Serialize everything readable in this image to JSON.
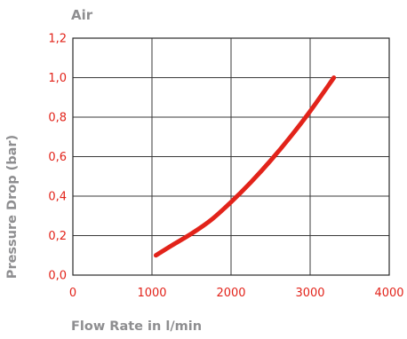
{
  "chart_data": {
    "type": "line",
    "title": "Air",
    "xlabel": "Flow Rate in l/min",
    "ylabel": "Pressure Drop (bar)",
    "xlim": [
      0,
      4000
    ],
    "ylim": [
      0,
      1.2
    ],
    "x_ticks": [
      "0",
      "1000",
      "2000",
      "3000",
      "4000"
    ],
    "y_ticks": [
      "0,0",
      "0,2",
      "0,4",
      "0,6",
      "0,8",
      "1,0",
      "1,2"
    ],
    "grid": true,
    "series": [
      {
        "color": "#e2231a",
        "x": [
          1050,
          1250,
          1500,
          1750,
          2000,
          2250,
          2500,
          2750,
          3000,
          3300
        ],
        "y": [
          0.1,
          0.15,
          0.21,
          0.28,
          0.37,
          0.47,
          0.58,
          0.7,
          0.83,
          1.0
        ]
      }
    ]
  },
  "colors": {
    "tick_text": "#e2231a",
    "label_text": "#8e8e90",
    "grid": "#3a3a3a"
  }
}
